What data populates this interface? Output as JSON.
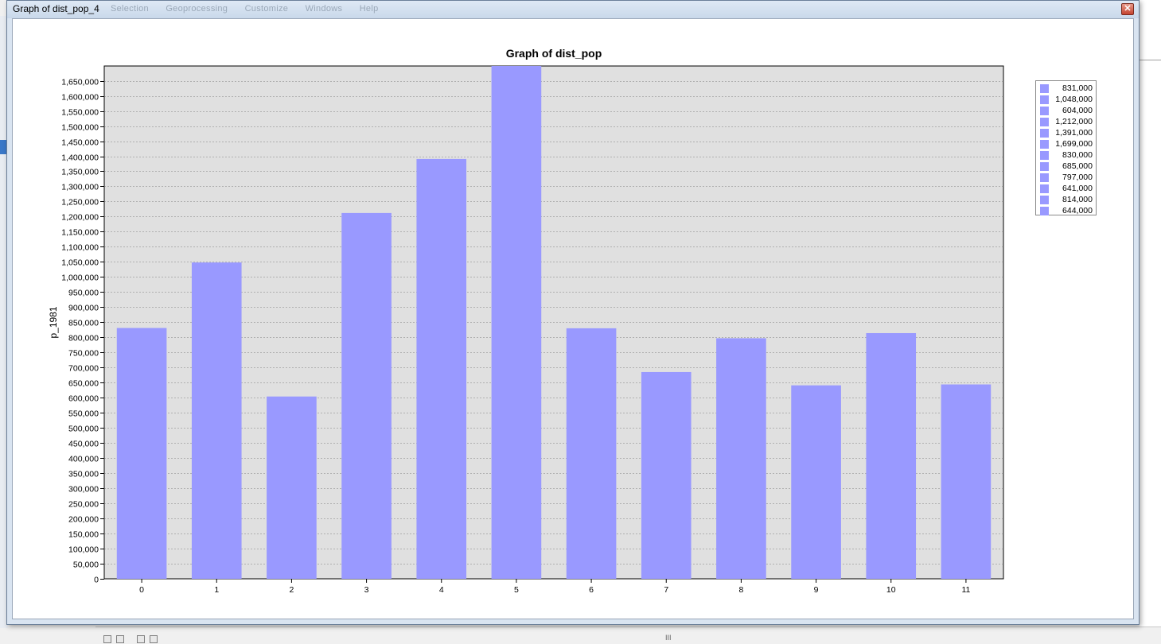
{
  "window": {
    "title": "Graph of dist_pop_4",
    "close_glyph": "✕"
  },
  "ghost_menu": [
    "Selection",
    "Geoprocessing",
    "Customize",
    "Windows",
    "Help"
  ],
  "bottom_bar": {
    "scroll_grip": "III"
  },
  "colors": {
    "bar": "#9999ff",
    "plot_bg": "#e0e0e0",
    "grid": "#808080"
  },
  "chart_data": {
    "type": "bar",
    "title": "Graph of dist_pop",
    "xlabel": "",
    "ylabel": "p_1981",
    "categories": [
      "0",
      "1",
      "2",
      "3",
      "4",
      "5",
      "6",
      "7",
      "8",
      "9",
      "10",
      "11"
    ],
    "values": [
      831000,
      1048000,
      604000,
      1212000,
      1391000,
      1699000,
      830000,
      685000,
      797000,
      641000,
      814000,
      644000
    ],
    "ylim": [
      0,
      1699000
    ],
    "ytick_step": 50000,
    "grid": true,
    "legend_position": "right",
    "legend": [
      "831,000",
      "1,048,000",
      "604,000",
      "1,212,000",
      "1,391,000",
      "1,699,000",
      "830,000",
      "685,000",
      "797,000",
      "641,000",
      "814,000",
      "644,000"
    ]
  }
}
